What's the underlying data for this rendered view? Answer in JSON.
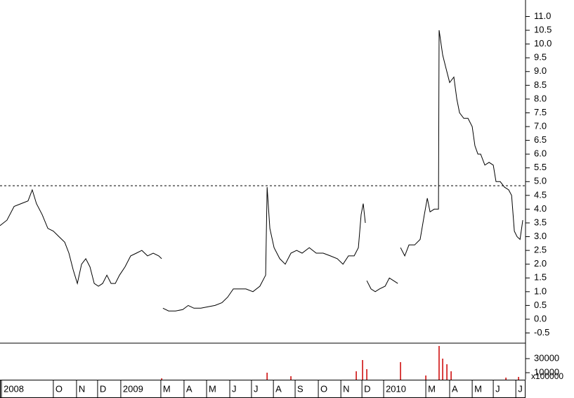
{
  "chart_data": {
    "type": "line",
    "x": [
      0,
      0.33,
      0.67,
      1,
      1.33,
      1.53,
      1.73,
      2,
      2.27,
      2.53,
      2.8,
      3.07,
      3.27,
      3.47,
      3.67,
      3.87,
      4.07,
      4.27,
      4.47,
      4.67,
      4.87,
      5.07,
      5.27,
      5.47,
      5.67,
      5.93,
      6.2,
      6.47,
      6.73,
      7,
      7.27,
      7.53,
      7.67,
      7.7,
      7.73,
      8,
      8.33,
      8.67,
      8.93,
      9.2,
      9.53,
      9.87,
      10.2,
      10.53,
      10.8,
      11.07,
      11.33,
      11.67,
      12,
      12.33,
      12.6,
      12.67,
      12.8,
      13,
      13.27,
      13.53,
      13.8,
      14.07,
      14.33,
      14.67,
      15,
      15.33,
      15.67,
      16,
      16.27,
      16.53,
      16.8,
      17,
      17.13,
      17.23,
      17.33,
      17.35,
      17.4,
      17.6,
      17.8,
      18,
      18.27,
      18.47,
      18.67,
      18.87,
      18.9,
      19,
      19.2,
      19.4,
      19.67,
      19.93,
      20.13,
      20.27,
      20.4,
      20.6,
      20.8,
      20.83,
      21,
      21.13,
      21.33,
      21.53,
      21.67,
      21.8,
      22,
      22.2,
      22.4,
      22.53,
      22.67,
      22.8,
      23,
      23.2,
      23.4,
      23.53,
      23.73,
      23.93,
      24.13,
      24.27,
      24.4,
      24.53,
      24.67,
      24.8
    ],
    "series": [
      {
        "color": "#000000",
        "values": [
          3.4,
          3.6,
          4.1,
          4.2,
          4.3,
          4.7,
          4.2,
          3.8,
          3.3,
          3.2,
          3.0,
          2.8,
          2.4,
          1.8,
          1.3,
          2.0,
          2.2,
          1.9,
          1.3,
          1.2,
          1.3,
          1.6,
          1.3,
          1.3,
          1.6,
          1.9,
          2.3,
          2.4,
          2.5,
          2.3,
          2.4,
          2.3,
          2.2,
          null,
          0.4,
          0.3,
          0.3,
          0.35,
          0.5,
          0.4,
          0.4,
          0.45,
          0.5,
          0.6,
          0.8,
          1.1,
          1.1,
          1.1,
          1.0,
          1.2,
          1.6,
          4.8,
          3.3,
          2.6,
          2.2,
          2.0,
          2.4,
          2.5,
          2.4,
          2.6,
          2.4,
          2.4,
          2.3,
          2.2,
          2.0,
          2.3,
          2.3,
          2.6,
          3.8,
          4.2,
          3.5,
          null,
          1.4,
          1.1,
          1.0,
          1.1,
          1.2,
          1.5,
          1.4,
          1.3,
          null,
          2.6,
          2.3,
          2.7,
          2.7,
          2.9,
          3.8,
          4.4,
          3.9,
          4.0,
          4.0,
          10.5,
          9.6,
          9.2,
          8.6,
          8.8,
          8.0,
          7.5,
          7.3,
          7.3,
          7.0,
          6.3,
          6.0,
          6.0,
          5.6,
          5.7,
          5.6,
          5.0,
          5.0,
          4.8,
          4.7,
          4.5,
          3.2,
          3.0,
          2.9,
          3.6
        ]
      }
    ],
    "reference_line": 4.85,
    "volume": {
      "x": [
        7.67,
        12.67,
        13.8,
        16.9,
        17.2,
        17.4,
        19.0,
        20.2,
        20.83,
        21,
        21.2,
        21.4,
        24,
        24.6
      ],
      "values": [
        2000,
        10000,
        5000,
        12000,
        28000,
        15000,
        25000,
        6000,
        48000,
        30000,
        22000,
        12000,
        3000,
        4000
      ],
      "color": "#cc0000",
      "ylim": [
        0,
        52000
      ],
      "yticks": [
        30000,
        10000
      ]
    },
    "volume_unit": "x100000",
    "xlim": [
      0,
      24.93
    ],
    "xticks": [
      {
        "value": 0.07,
        "label": "2008"
      },
      {
        "value": 2.53,
        "label": "O"
      },
      {
        "value": 3.63,
        "label": "N"
      },
      {
        "value": 4.63,
        "label": "D"
      },
      {
        "value": 5.73,
        "label": "2009"
      },
      {
        "value": 7.63,
        "label": "M"
      },
      {
        "value": 8.73,
        "label": "A"
      },
      {
        "value": 9.8,
        "label": "M"
      },
      {
        "value": 10.9,
        "label": "J"
      },
      {
        "value": 11.93,
        "label": "J"
      },
      {
        "value": 12.97,
        "label": "A"
      },
      {
        "value": 14,
        "label": "S"
      },
      {
        "value": 15.1,
        "label": "O"
      },
      {
        "value": 16.17,
        "label": "N"
      },
      {
        "value": 17.17,
        "label": "D"
      },
      {
        "value": 18.2,
        "label": "2010"
      },
      {
        "value": 20.2,
        "label": "M"
      },
      {
        "value": 21.33,
        "label": "A"
      },
      {
        "value": 22.4,
        "label": "M"
      },
      {
        "value": 23.4,
        "label": "J"
      },
      {
        "value": 24.47,
        "label": "J"
      }
    ],
    "ylim": [
      -0.87,
      11.6
    ],
    "yticks": [
      -0.5,
      {
        "value": 0,
        "label": "0.0"
      },
      0.5,
      {
        "value": 1,
        "label": "1.0"
      },
      1.5,
      {
        "value": 2,
        "label": "2.0"
      },
      2.5,
      {
        "value": 3,
        "label": "3.0"
      },
      3.5,
      {
        "value": 4,
        "label": "4.0"
      },
      4.5,
      {
        "value": 5,
        "label": "5.0"
      },
      5.5,
      {
        "value": 6,
        "label": "6.0"
      },
      6.5,
      {
        "value": 7,
        "label": "7.0"
      },
      7.5,
      {
        "value": 8,
        "label": "8.0"
      },
      8.5,
      {
        "value": 9,
        "label": "9.0"
      },
      9.5,
      {
        "value": 10,
        "label": "10.0"
      },
      10.5,
      {
        "value": 11,
        "label": "11.0"
      }
    ]
  }
}
